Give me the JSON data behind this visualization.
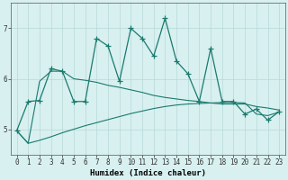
{
  "xlabel": "Humidex (Indice chaleur)",
  "background_color": "#d8f0f0",
  "grid_color": "#b8d8d8",
  "line_color": "#1a7a6e",
  "x_values": [
    0,
    1,
    2,
    3,
    4,
    5,
    6,
    7,
    8,
    9,
    10,
    11,
    12,
    13,
    14,
    15,
    16,
    17,
    18,
    19,
    20,
    21,
    22,
    23
  ],
  "line_jagged": [
    4.97,
    5.55,
    5.57,
    6.2,
    6.15,
    5.55,
    5.55,
    6.8,
    6.65,
    5.95,
    7.0,
    6.8,
    6.45,
    7.2,
    6.35,
    6.1,
    5.55,
    6.6,
    5.55,
    5.55,
    5.3,
    5.4,
    5.18,
    5.35
  ],
  "line_upper_smooth": [
    4.97,
    4.72,
    5.95,
    6.15,
    6.15,
    6.0,
    5.97,
    5.93,
    5.87,
    5.83,
    5.78,
    5.73,
    5.67,
    5.63,
    5.6,
    5.57,
    5.55,
    5.52,
    5.5,
    5.5,
    5.5,
    5.45,
    5.42,
    5.38
  ],
  "line_lower_smooth": [
    4.97,
    4.72,
    4.78,
    4.85,
    4.93,
    5.0,
    5.07,
    5.13,
    5.19,
    5.25,
    5.31,
    5.36,
    5.41,
    5.45,
    5.48,
    5.5,
    5.51,
    5.52,
    5.53,
    5.53,
    5.52,
    5.3,
    5.27,
    5.34
  ],
  "xlim": [
    -0.5,
    23.5
  ],
  "ylim": [
    4.5,
    7.5
  ],
  "yticks": [
    5,
    6,
    7
  ],
  "xticks": [
    0,
    1,
    2,
    3,
    4,
    5,
    6,
    7,
    8,
    9,
    10,
    11,
    12,
    13,
    14,
    15,
    16,
    17,
    18,
    19,
    20,
    21,
    22,
    23
  ]
}
